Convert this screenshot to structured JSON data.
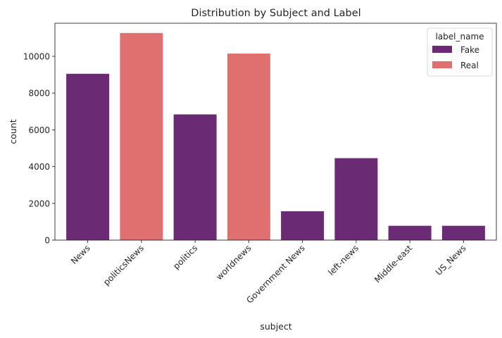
{
  "chart_data": {
    "type": "bar",
    "title": "Distribution by Subject and Label",
    "xlabel": "subject",
    "ylabel": "count",
    "ylim": [
      0,
      11800
    ],
    "yticks": [
      0,
      2000,
      4000,
      6000,
      8000,
      10000
    ],
    "categories": [
      "News",
      "politicsNews",
      "politics",
      "worldnews",
      "Government News",
      "left-news",
      "Middle-east",
      "US_News"
    ],
    "legend": {
      "title": "label_name",
      "placement": "top-right",
      "entries": [
        {
          "name": "Fake",
          "color": "#6a2a74"
        },
        {
          "name": "Real",
          "color": "#e0706f"
        }
      ]
    },
    "bars": [
      {
        "category": "News",
        "label": "Fake",
        "value": 9050
      },
      {
        "category": "politicsNews",
        "label": "Real",
        "value": 11270
      },
      {
        "category": "politics",
        "label": "Fake",
        "value": 6840
      },
      {
        "category": "worldnews",
        "label": "Real",
        "value": 10150
      },
      {
        "category": "Government News",
        "label": "Fake",
        "value": 1570
      },
      {
        "category": "left-news",
        "label": "Fake",
        "value": 4460
      },
      {
        "category": "Middle-east",
        "label": "Fake",
        "value": 780
      },
      {
        "category": "US_News",
        "label": "Fake",
        "value": 780
      }
    ],
    "grid": false
  }
}
